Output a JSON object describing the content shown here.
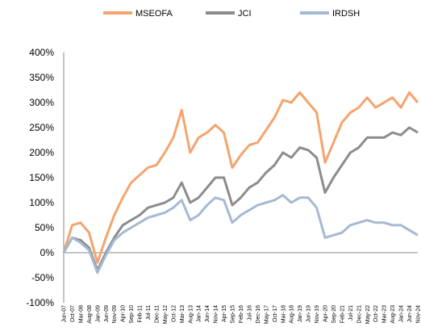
{
  "chart_data": {
    "type": "line",
    "categories": [
      "Jun-07",
      "Oct-07",
      "Mar-08",
      "Aug-08",
      "Jan-09",
      "Jun-09",
      "Nov-09",
      "Apr-10",
      "Sep-10",
      "Feb-11",
      "Jul-11",
      "Dec-11",
      "May-12",
      "Oct-12",
      "Mar-13",
      "Aug-13",
      "Jan-14",
      "Jun-14",
      "Nov-14",
      "Apr-15",
      "Sep-15",
      "Feb-16",
      "Jul-16",
      "Dec-16",
      "May-17",
      "Oct-17",
      "Mar-18",
      "Aug-18",
      "Jan-19",
      "Jun-19",
      "Nov-19",
      "Apr-20",
      "Sep-20",
      "Feb-21",
      "Jul-21",
      "Dec-21",
      "May-22",
      "Oct-22",
      "Mar-23",
      "Aug-23",
      "Jan-24",
      "Jun-24",
      "Nov-24"
    ],
    "series": [
      {
        "name": "MSEOFA",
        "color": "#f4a46e",
        "values": [
          0,
          55,
          60,
          40,
          -20,
          30,
          75,
          110,
          140,
          155,
          170,
          175,
          200,
          230,
          285,
          200,
          230,
          240,
          255,
          240,
          170,
          195,
          215,
          220,
          245,
          270,
          305,
          300,
          320,
          300,
          280,
          180,
          220,
          260,
          280,
          290,
          310,
          290,
          300,
          310,
          290,
          320,
          300
        ]
      },
      {
        "name": "JCI",
        "color": "#8c8c8c",
        "values": [
          0,
          30,
          25,
          10,
          -35,
          0,
          30,
          55,
          65,
          75,
          90,
          95,
          100,
          110,
          140,
          100,
          110,
          130,
          150,
          150,
          95,
          110,
          130,
          140,
          160,
          175,
          200,
          190,
          210,
          205,
          190,
          120,
          150,
          175,
          200,
          210,
          230,
          230,
          230,
          240,
          235,
          250,
          240
        ]
      },
      {
        "name": "IRDSH",
        "color": "#a6b9d3",
        "values": [
          0,
          30,
          20,
          5,
          -40,
          -5,
          25,
          40,
          50,
          60,
          70,
          75,
          80,
          90,
          105,
          65,
          75,
          95,
          110,
          105,
          60,
          75,
          85,
          95,
          100,
          105,
          115,
          100,
          110,
          110,
          90,
          30,
          35,
          40,
          55,
          60,
          65,
          60,
          60,
          55,
          55,
          45,
          35
        ]
      }
    ],
    "ylim": [
      -100,
      400
    ],
    "yticks": [
      {
        "value": -100,
        "label": "-100%"
      },
      {
        "value": -50,
        "label": "-50%"
      },
      {
        "value": 0,
        "label": "0%"
      },
      {
        "value": 50,
        "label": "50%"
      },
      {
        "value": 100,
        "label": "100%"
      },
      {
        "value": 150,
        "label": "150%"
      },
      {
        "value": 200,
        "label": "200%"
      },
      {
        "value": 250,
        "label": "250%"
      },
      {
        "value": 300,
        "label": "300%"
      },
      {
        "value": 350,
        "label": "350%"
      },
      {
        "value": 400,
        "label": "400%"
      }
    ],
    "legend": "top"
  }
}
